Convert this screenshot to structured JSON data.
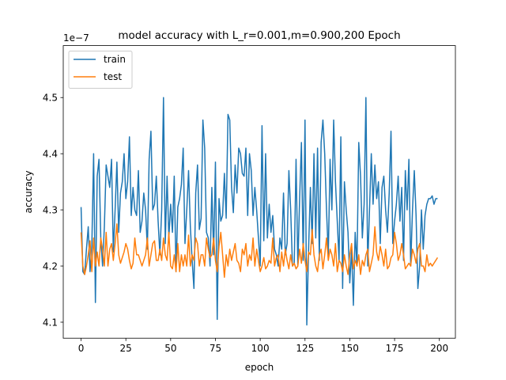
{
  "chart_data": {
    "type": "line",
    "title": "model accuracy with L_r=0.001,m=0.900,200 Epoch",
    "xlabel": "epoch",
    "ylabel": "accuracy",
    "y_offset_label": "1e−7",
    "xlim": [
      -9.95,
      208.95
    ],
    "ylim": [
      4.0715,
      4.5925
    ],
    "xticks": [
      0,
      25,
      50,
      75,
      100,
      125,
      150,
      175,
      200
    ],
    "yticks": [
      4.1,
      4.2,
      4.3,
      4.4,
      4.5
    ],
    "ytick_labels": [
      "4.1",
      "4.2",
      "4.3",
      "4.4",
      "4.5"
    ],
    "legend": {
      "position": "top-left"
    },
    "grid": false,
    "series": [
      {
        "name": "train",
        "color": "#1f77b4",
        "values": [
          4.305,
          4.19,
          4.185,
          4.23,
          4.27,
          4.19,
          4.235,
          4.4,
          4.135,
          4.36,
          4.39,
          4.25,
          4.2,
          4.27,
          4.38,
          4.36,
          4.34,
          4.39,
          4.225,
          4.3,
          4.385,
          4.26,
          4.33,
          4.35,
          4.4,
          4.32,
          4.35,
          4.43,
          4.29,
          4.34,
          4.3,
          4.29,
          4.37,
          4.26,
          4.28,
          4.33,
          4.3,
          4.23,
          4.39,
          4.44,
          4.3,
          4.31,
          4.36,
          4.28,
          4.22,
          4.3,
          4.5,
          4.24,
          4.36,
          4.25,
          4.31,
          4.26,
          4.36,
          4.19,
          4.305,
          4.32,
          4.345,
          4.41,
          4.24,
          4.3,
          4.37,
          4.27,
          4.21,
          4.16,
          4.33,
          4.38,
          4.265,
          4.285,
          4.46,
          4.41,
          4.26,
          4.25,
          4.2,
          4.34,
          4.22,
          4.385,
          4.105,
          4.32,
          4.28,
          4.29,
          4.365,
          4.285,
          4.47,
          4.46,
          4.34,
          4.295,
          4.38,
          4.33,
          4.41,
          4.4,
          4.365,
          4.36,
          4.41,
          4.29,
          4.4,
          4.37,
          4.29,
          4.34,
          4.3,
          4.25,
          4.2,
          4.45,
          4.245,
          4.4,
          4.25,
          4.31,
          4.26,
          4.29,
          4.23,
          4.22,
          4.2,
          4.25,
          4.23,
          4.33,
          4.22,
          4.24,
          4.37,
          4.3,
          4.2,
          4.205,
          4.39,
          4.2,
          4.32,
          4.42,
          4.21,
          4.46,
          4.095,
          4.23,
          4.34,
          4.24,
          4.4,
          4.25,
          4.41,
          4.21,
          4.42,
          4.46,
          4.4,
          4.3,
          4.22,
          4.39,
          4.3,
          4.46,
          4.35,
          4.28,
          4.21,
          4.43,
          4.16,
          4.35,
          4.3,
          4.26,
          4.17,
          4.23,
          4.13,
          4.26,
          4.2,
          4.42,
          4.36,
          4.25,
          4.31,
          4.5,
          4.2,
          4.3,
          4.4,
          4.31,
          4.38,
          4.32,
          4.35,
          4.24,
          4.34,
          4.36,
          4.3,
          4.26,
          4.33,
          4.44,
          4.24,
          4.28,
          4.31,
          4.36,
          4.28,
          4.34,
          4.21,
          4.37,
          4.3,
          4.39,
          4.2,
          4.3,
          4.37,
          4.29,
          4.16,
          4.2,
          4.3,
          4.23,
          4.29,
          4.31,
          4.32,
          4.32,
          4.325,
          4.31,
          4.32,
          4.32
        ]
      },
      {
        "name": "test",
        "color": "#ff7f0e",
        "values": [
          4.26,
          4.2,
          4.185,
          4.2,
          4.22,
          4.245,
          4.19,
          4.25,
          4.2,
          4.225,
          4.2,
          4.25,
          4.23,
          4.2,
          4.26,
          4.2,
          4.23,
          4.24,
          4.21,
          4.24,
          4.275,
          4.22,
          4.205,
          4.215,
          4.225,
          4.24,
          4.23,
          4.21,
          4.195,
          4.205,
          4.25,
          4.22,
          4.22,
          4.21,
          4.2,
          4.21,
          4.22,
          4.25,
          4.2,
          4.22,
          4.24,
          4.245,
          4.21,
          4.21,
          4.23,
          4.21,
          4.25,
          4.22,
          4.21,
          4.26,
          4.2,
          4.195,
          4.22,
          4.19,
          4.24,
          4.19,
          4.22,
          4.2,
          4.22,
          4.2,
          4.255,
          4.2,
          4.22,
          4.21,
          4.25,
          4.24,
          4.2,
          4.22,
          4.22,
          4.2,
          4.25,
          4.23,
          4.215,
          4.22,
          4.25,
          4.21,
          4.19,
          4.235,
          4.26,
          4.22,
          4.18,
          4.22,
          4.2,
          4.23,
          4.21,
          4.225,
          4.24,
          4.21,
          4.205,
          4.19,
          4.23,
          4.22,
          4.24,
          4.2,
          4.22,
          4.21,
          4.25,
          4.2,
          4.23,
          4.21,
          4.19,
          4.2,
          4.215,
          4.195,
          4.2,
          4.21,
          4.205,
          4.25,
          4.2,
          4.215,
          4.22,
          4.19,
          4.225,
          4.2,
          4.23,
          4.21,
          4.195,
          4.22,
          4.2,
          4.205,
          4.195,
          4.2,
          4.23,
          4.205,
          4.24,
          4.21,
          4.19,
          4.225,
          4.22,
          4.265,
          4.22,
          4.2,
          4.19,
          4.22,
          4.23,
          4.195,
          4.22,
          4.25,
          4.21,
          4.23,
          4.22,
          4.2,
          4.24,
          4.19,
          4.21,
          4.205,
          4.19,
          4.22,
          4.2,
          4.185,
          4.22,
          4.24,
          4.195,
          4.21,
          4.2,
          4.22,
          4.185,
          4.21,
          4.2,
          4.22,
          4.23,
          4.19,
          4.205,
          4.22,
          4.27,
          4.225,
          4.21,
          4.235,
          4.22,
          4.2,
          4.23,
          4.195,
          4.2,
          4.215,
          4.22,
          4.26,
          4.24,
          4.21,
          4.22,
          4.24,
          4.22,
          4.195,
          4.2,
          4.205,
          4.2,
          4.23,
          4.22,
          4.205,
          4.23,
          4.24,
          4.2,
          4.2,
          4.19,
          4.22,
          4.2,
          4.205,
          4.2,
          4.205,
          4.21,
          4.215
        ]
      }
    ]
  }
}
